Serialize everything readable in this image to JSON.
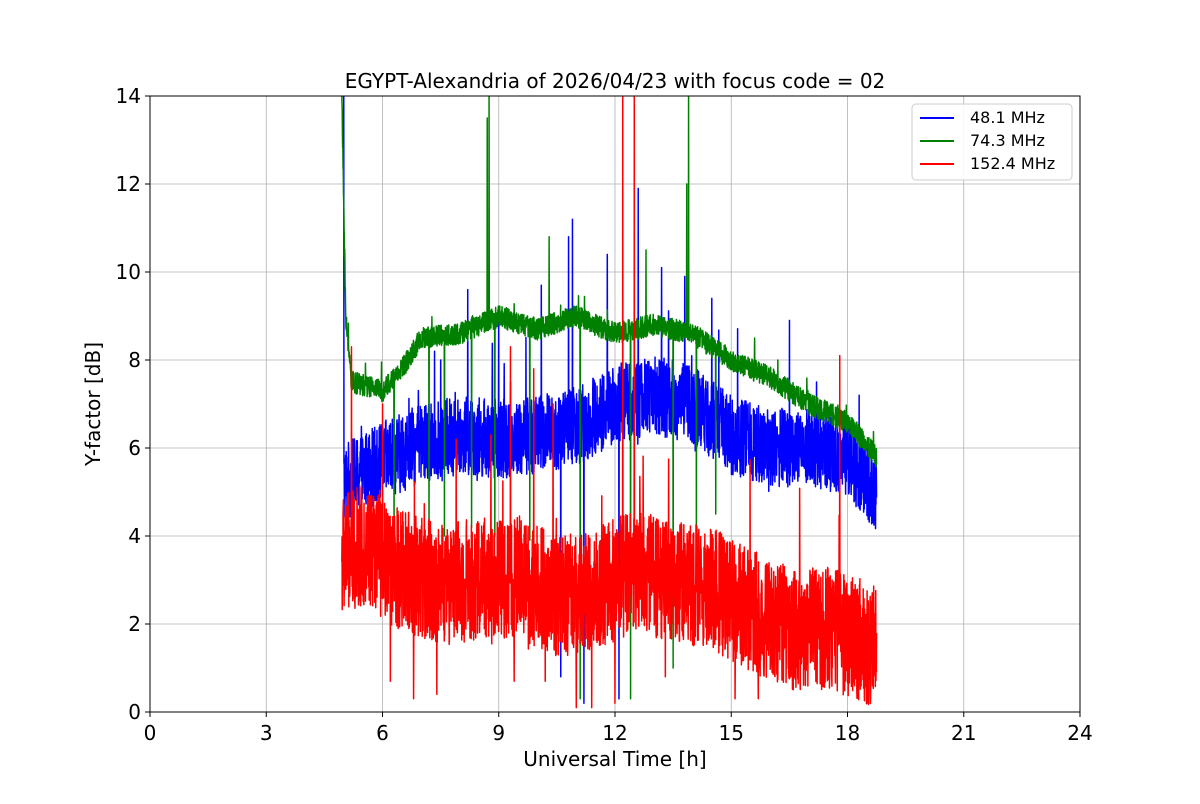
{
  "chart_data": {
    "type": "line",
    "title": "EGYPT-Alexandria of 2026/04/23 with focus code = 02",
    "xlabel": "Universal Time [h]",
    "ylabel": "Y-factor [dB]",
    "xlim": [
      0,
      24
    ],
    "ylim": [
      0,
      14
    ],
    "xticks": [
      0,
      3,
      6,
      9,
      12,
      15,
      18,
      21,
      24
    ],
    "yticks": [
      0,
      2,
      4,
      6,
      8,
      10,
      12,
      14
    ],
    "grid": true,
    "legend_position": "top-right",
    "series": [
      {
        "name": "  48.1 MHz",
        "color": "#0000ff",
        "x_start": 5.0,
        "x_end": 18.75,
        "noise": 0.9,
        "envelope": [
          [
            5.0,
            5.2
          ],
          [
            6.0,
            5.7
          ],
          [
            7.0,
            6.1
          ],
          [
            8.0,
            6.3
          ],
          [
            9.0,
            6.2
          ],
          [
            10.0,
            6.3
          ],
          [
            11.0,
            6.5
          ],
          [
            12.0,
            7.0
          ],
          [
            13.0,
            7.2
          ],
          [
            14.0,
            7.0
          ],
          [
            15.0,
            6.3
          ],
          [
            16.0,
            6.0
          ],
          [
            17.0,
            6.0
          ],
          [
            18.0,
            5.8
          ],
          [
            18.75,
            5.0
          ]
        ],
        "spikes": [
          [
            5.0,
            14.0
          ],
          [
            7.5,
            8.0
          ],
          [
            8.2,
            9.6
          ],
          [
            9.0,
            9.1
          ],
          [
            10.1,
            9.7
          ],
          [
            10.8,
            10.8
          ],
          [
            10.9,
            11.2
          ],
          [
            11.8,
            10.4
          ],
          [
            12.6,
            11.9
          ],
          [
            13.2,
            10.1
          ],
          [
            13.8,
            9.9
          ],
          [
            14.5,
            9.4
          ],
          [
            16.5,
            8.9
          ],
          [
            17.2,
            7.5
          ],
          [
            18.3,
            7.2
          ],
          [
            10.6,
            0.8
          ],
          [
            11.2,
            0.2
          ],
          [
            12.1,
            0.3
          ]
        ]
      },
      {
        "name": "  74.3 MHz",
        "color": "#008000",
        "x_start": 4.95,
        "x_end": 18.75,
        "noise": 0.25,
        "envelope": [
          [
            4.95,
            14.0
          ],
          [
            5.05,
            9.0
          ],
          [
            5.2,
            7.5
          ],
          [
            6.0,
            7.3
          ],
          [
            6.5,
            7.8
          ],
          [
            7.0,
            8.5
          ],
          [
            8.0,
            8.6
          ],
          [
            9.0,
            9.0
          ],
          [
            10.0,
            8.7
          ],
          [
            11.0,
            9.0
          ],
          [
            12.0,
            8.6
          ],
          [
            13.0,
            8.8
          ],
          [
            14.0,
            8.6
          ],
          [
            15.0,
            8.0
          ],
          [
            16.0,
            7.6
          ],
          [
            17.0,
            7.0
          ],
          [
            18.0,
            6.6
          ],
          [
            18.75,
            5.8
          ]
        ],
        "spikes": [
          [
            4.95,
            14.0
          ],
          [
            8.75,
            14.0
          ],
          [
            8.7,
            13.5
          ],
          [
            10.3,
            10.8
          ],
          [
            12.8,
            10.5
          ],
          [
            13.9,
            14.0
          ],
          [
            13.85,
            12.0
          ],
          [
            15.6,
            8.5
          ],
          [
            16.2,
            8.0
          ],
          [
            6.3,
            3.8
          ],
          [
            7.2,
            3.8
          ],
          [
            7.6,
            4.0
          ],
          [
            8.3,
            4.2
          ],
          [
            8.9,
            4.0
          ],
          [
            9.8,
            3.9
          ],
          [
            11.1,
            0.3
          ],
          [
            12.4,
            0.3
          ],
          [
            13.5,
            1.0
          ],
          [
            14.1,
            3.5
          ],
          [
            14.6,
            4.5
          ]
        ]
      },
      {
        "name": "152.4 MHz",
        "color": "#ff0000",
        "x_start": 4.95,
        "x_end": 18.75,
        "noise": 1.4,
        "envelope": [
          [
            4.95,
            3.5
          ],
          [
            5.5,
            3.8
          ],
          [
            6.5,
            3.2
          ],
          [
            7.5,
            2.9
          ],
          [
            8.5,
            3.0
          ],
          [
            9.5,
            3.1
          ],
          [
            10.5,
            2.6
          ],
          [
            11.5,
            2.8
          ],
          [
            12.5,
            3.2
          ],
          [
            13.5,
            3.0
          ],
          [
            14.5,
            2.8
          ],
          [
            15.5,
            2.3
          ],
          [
            16.5,
            1.9
          ],
          [
            17.5,
            1.9
          ],
          [
            18.75,
            1.5
          ]
        ],
        "spikes": [
          [
            5.2,
            8.3
          ],
          [
            6.0,
            7.0
          ],
          [
            7.9,
            6.2
          ],
          [
            8.8,
            6.3
          ],
          [
            9.3,
            8.3
          ],
          [
            9.9,
            7.8
          ],
          [
            10.4,
            7.0
          ],
          [
            12.2,
            14.0
          ],
          [
            12.5,
            14.0
          ],
          [
            15.7,
            8.6
          ],
          [
            17.8,
            8.1
          ],
          [
            6.2,
            0.7
          ],
          [
            6.8,
            0.3
          ],
          [
            7.4,
            0.4
          ],
          [
            9.4,
            0.7
          ],
          [
            10.2,
            0.7
          ],
          [
            11.0,
            0.1
          ],
          [
            11.4,
            0.1
          ],
          [
            12.0,
            0.2
          ],
          [
            13.3,
            0.8
          ],
          [
            15.1,
            0.3
          ],
          [
            15.7,
            0.3
          ]
        ]
      }
    ]
  }
}
